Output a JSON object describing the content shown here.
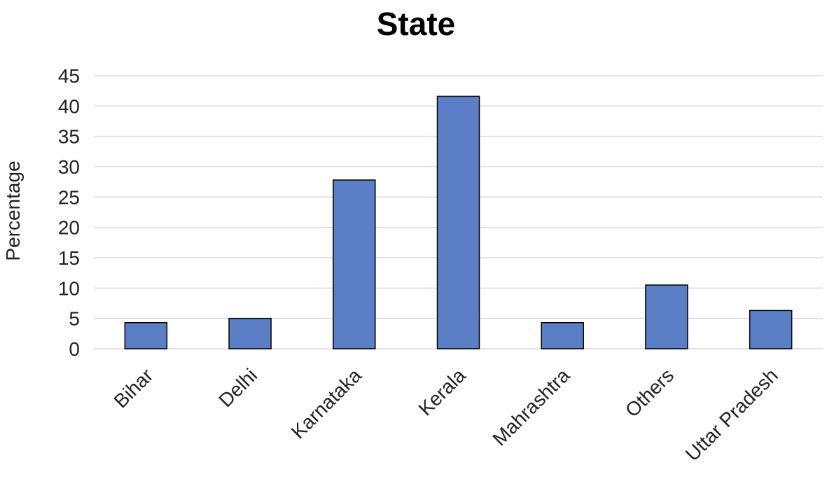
{
  "chart_data": {
    "type": "bar",
    "title": "State",
    "xlabel": "",
    "ylabel": "Percentage",
    "ylim": [
      0,
      45
    ],
    "yticks": [
      0,
      5,
      10,
      15,
      20,
      25,
      30,
      35,
      40,
      45
    ],
    "categories": [
      "Bihar",
      "Delhi",
      "Karnataka",
      "Kerala",
      "Mahrashtra",
      "Others",
      "Uttar Pradesh"
    ],
    "values": [
      4.3,
      5.0,
      27.8,
      41.6,
      4.3,
      10.5,
      6.3
    ],
    "grid": true,
    "legend": "none",
    "bar_color": "#5b7fc7"
  }
}
